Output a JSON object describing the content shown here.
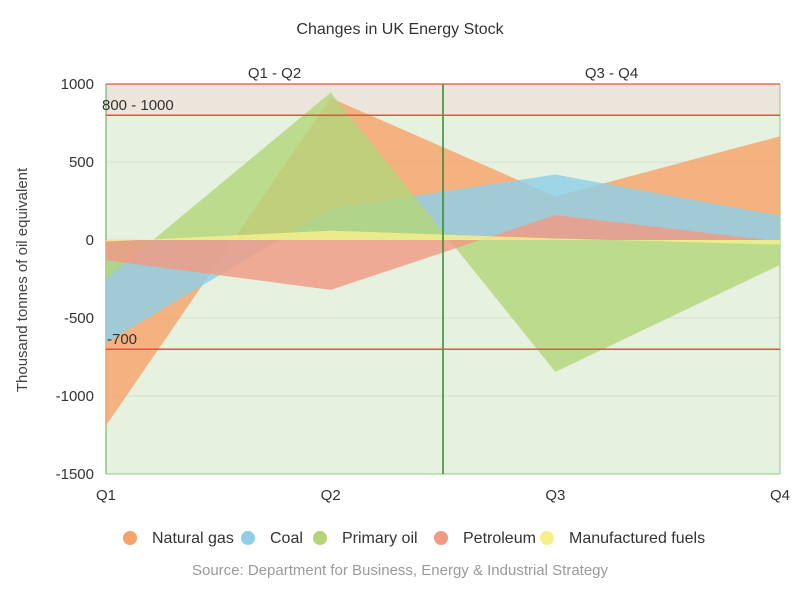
{
  "chart_data": {
    "type": "area",
    "title": "Changes in UK Energy Stock",
    "ylabel": "Thousand tonnes of oil equivalent",
    "xlabel": "",
    "categories": [
      "Q1",
      "Q2",
      "Q3",
      "Q4"
    ],
    "ylim": [
      -1500,
      1000
    ],
    "yticks": [
      1000,
      500,
      0,
      -500,
      -1000,
      -1500
    ],
    "grid": true,
    "legend_position": "bottom",
    "source": "Source: Department for Business, Energy & Industrial Strategy",
    "series": [
      {
        "name": "Natural gas",
        "color": "#f5a36a",
        "values": [
          -1190,
          910,
          280,
          665
        ]
      },
      {
        "name": "Coal",
        "color": "#8fcfe6",
        "values": [
          -660,
          200,
          420,
          155
        ]
      },
      {
        "name": "Primary oil",
        "color": "#b3d57a",
        "values": [
          -250,
          945,
          -845,
          -160
        ]
      },
      {
        "name": "Petroleum",
        "color": "#f09a84",
        "values": [
          -130,
          -320,
          160,
          -10
        ]
      },
      {
        "name": "Manufactured fuels",
        "color": "#f7f08a",
        "values": [
          -10,
          60,
          10,
          -30
        ]
      }
    ],
    "bands": [
      {
        "label": "Q1 - Q2",
        "color": "#e6f1e0"
      },
      {
        "label": "Q3 - Q4",
        "color": "#e6f1e0"
      }
    ],
    "threshold_band": {
      "from": 800,
      "to": 1000,
      "label": "800 - 1000",
      "color": "#ebe5dc"
    },
    "lines": [
      {
        "value": 800,
        "color": "#e5533f"
      },
      {
        "value": -700,
        "label": "-700",
        "color": "#e5533f"
      }
    ]
  }
}
